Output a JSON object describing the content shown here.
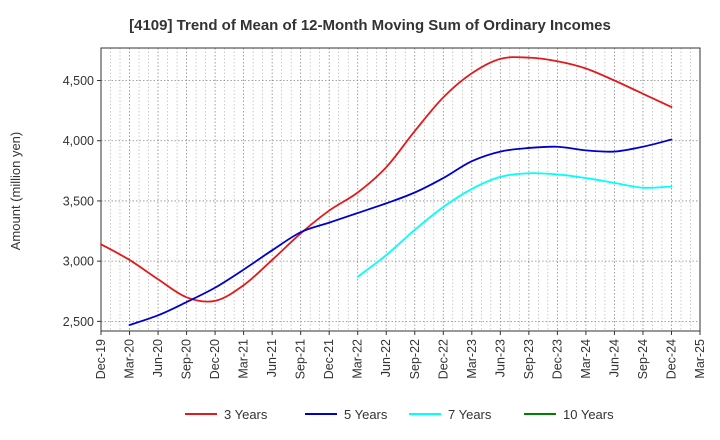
{
  "chart_data": {
    "type": "line",
    "title": "[4109]  Trend of Mean of 12-Month Moving Sum of Ordinary Incomes",
    "xlabel": "",
    "ylabel": "Amount (million yen)",
    "ylim": [
      2420,
      4770
    ],
    "yticks": [
      2500,
      3000,
      3500,
      4000,
      4500
    ],
    "ytick_labels": [
      "2,500",
      "3,000",
      "3,500",
      "4,000",
      "4,500"
    ],
    "categories": [
      "Dec-19",
      "Mar-20",
      "Jun-20",
      "Sep-20",
      "Dec-20",
      "Mar-21",
      "Jun-21",
      "Sep-21",
      "Dec-21",
      "Mar-22",
      "Jun-22",
      "Sep-22",
      "Dec-22",
      "Mar-23",
      "Jun-23",
      "Sep-23",
      "Dec-23",
      "Mar-24",
      "Jun-24",
      "Sep-24",
      "Dec-24",
      "Mar-25"
    ],
    "grid": true,
    "legend_position": "bottom",
    "series": [
      {
        "name": "3 Years",
        "color": "#e31a1c",
        "values": [
          3140,
          3010,
          2850,
          2700,
          2670,
          2800,
          3010,
          3230,
          3420,
          3570,
          3780,
          4080,
          4360,
          4560,
          4680,
          4690,
          4660,
          4600,
          4500,
          4390,
          4280,
          null
        ]
      },
      {
        "name": "5 Years",
        "color": "#0000cc",
        "values": [
          null,
          2470,
          2550,
          2660,
          2780,
          2930,
          3090,
          3240,
          3320,
          3400,
          3480,
          3570,
          3690,
          3830,
          3910,
          3940,
          3950,
          3920,
          3910,
          3950,
          4010,
          null
        ]
      },
      {
        "name": "7 Years",
        "color": "#00ffff",
        "values": [
          null,
          null,
          null,
          null,
          null,
          null,
          null,
          null,
          null,
          2870,
          3050,
          3260,
          3450,
          3600,
          3700,
          3730,
          3720,
          3690,
          3650,
          3610,
          3620,
          null
        ]
      },
      {
        "name": "10 Years",
        "color": "#008000",
        "values": [
          null,
          null,
          null,
          null,
          null,
          null,
          null,
          null,
          null,
          null,
          null,
          null,
          null,
          null,
          null,
          null,
          null,
          null,
          null,
          null,
          null,
          null
        ]
      }
    ]
  }
}
